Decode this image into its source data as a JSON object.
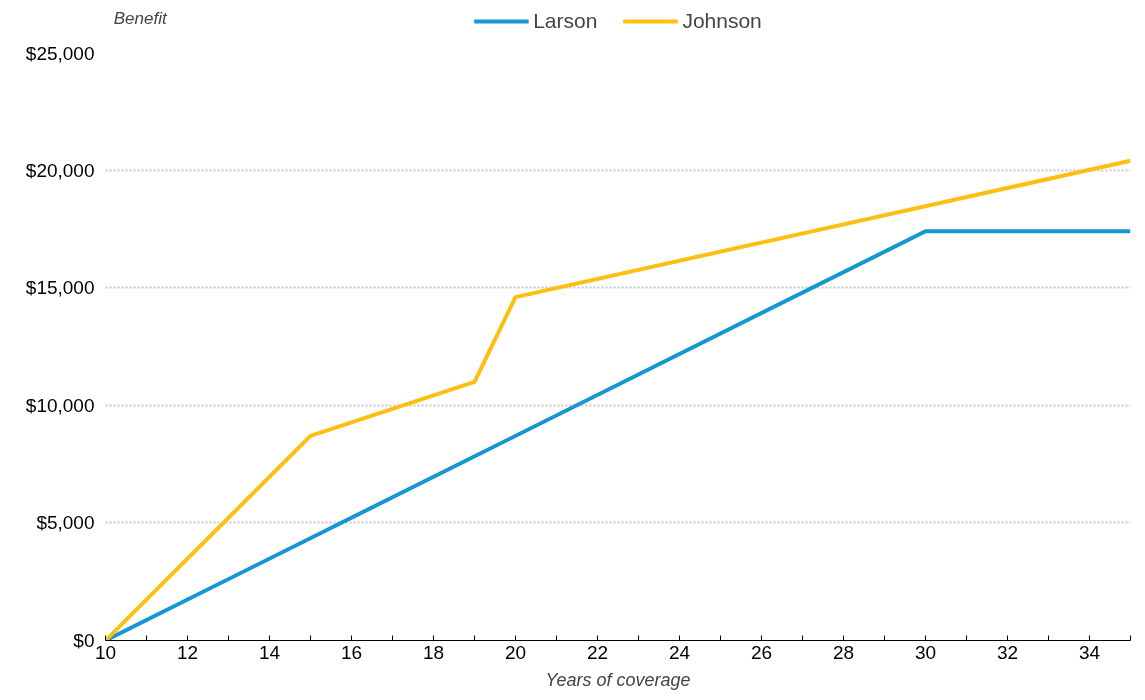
{
  "chart_data": {
    "type": "line",
    "annotations": [
      "Benefit"
    ],
    "xlabel": "Years of coverage",
    "series": [
      {
        "name": "Larson",
        "color": "#1696d2",
        "x": [
          10,
          30,
          35
        ],
        "values": [
          0,
          17400,
          17400
        ]
      },
      {
        "name": "Johnson",
        "color": "#fdbf11",
        "x": [
          10,
          15,
          19,
          20,
          35
        ],
        "values": [
          0,
          8700,
          11000,
          14600,
          20400
        ]
      }
    ],
    "xlim": [
      10,
      35
    ],
    "ylim": [
      0,
      25000
    ],
    "xticks": [
      10,
      {
        "value": 11,
        "label": null
      },
      12,
      {
        "value": 13,
        "label": null
      },
      14,
      {
        "value": 15,
        "label": null
      },
      16,
      {
        "value": 17,
        "label": null
      },
      18,
      {
        "value": 19,
        "label": null
      },
      20,
      {
        "value": 21,
        "label": null
      },
      22,
      {
        "value": 23,
        "label": null
      },
      24,
      {
        "value": 25,
        "label": null
      },
      26,
      {
        "value": 27,
        "label": null
      },
      28,
      {
        "value": 29,
        "label": null
      },
      30,
      {
        "value": 31,
        "label": null
      },
      32,
      {
        "value": 33,
        "label": null
      },
      34,
      {
        "value": 35,
        "label": null
      }
    ],
    "yticks": [
      {
        "value": 0,
        "label": "$0"
      },
      {
        "value": 5000,
        "label": "$5,000"
      },
      {
        "value": 10000,
        "label": "$10,000"
      },
      {
        "value": 15000,
        "label": "$15,000"
      },
      {
        "value": 20000,
        "label": "$20,000"
      },
      {
        "value": 25000,
        "label": "$25,000"
      }
    ],
    "grid": "y",
    "legend": "top",
    "marker": "none",
    "line_style": "solid"
  }
}
